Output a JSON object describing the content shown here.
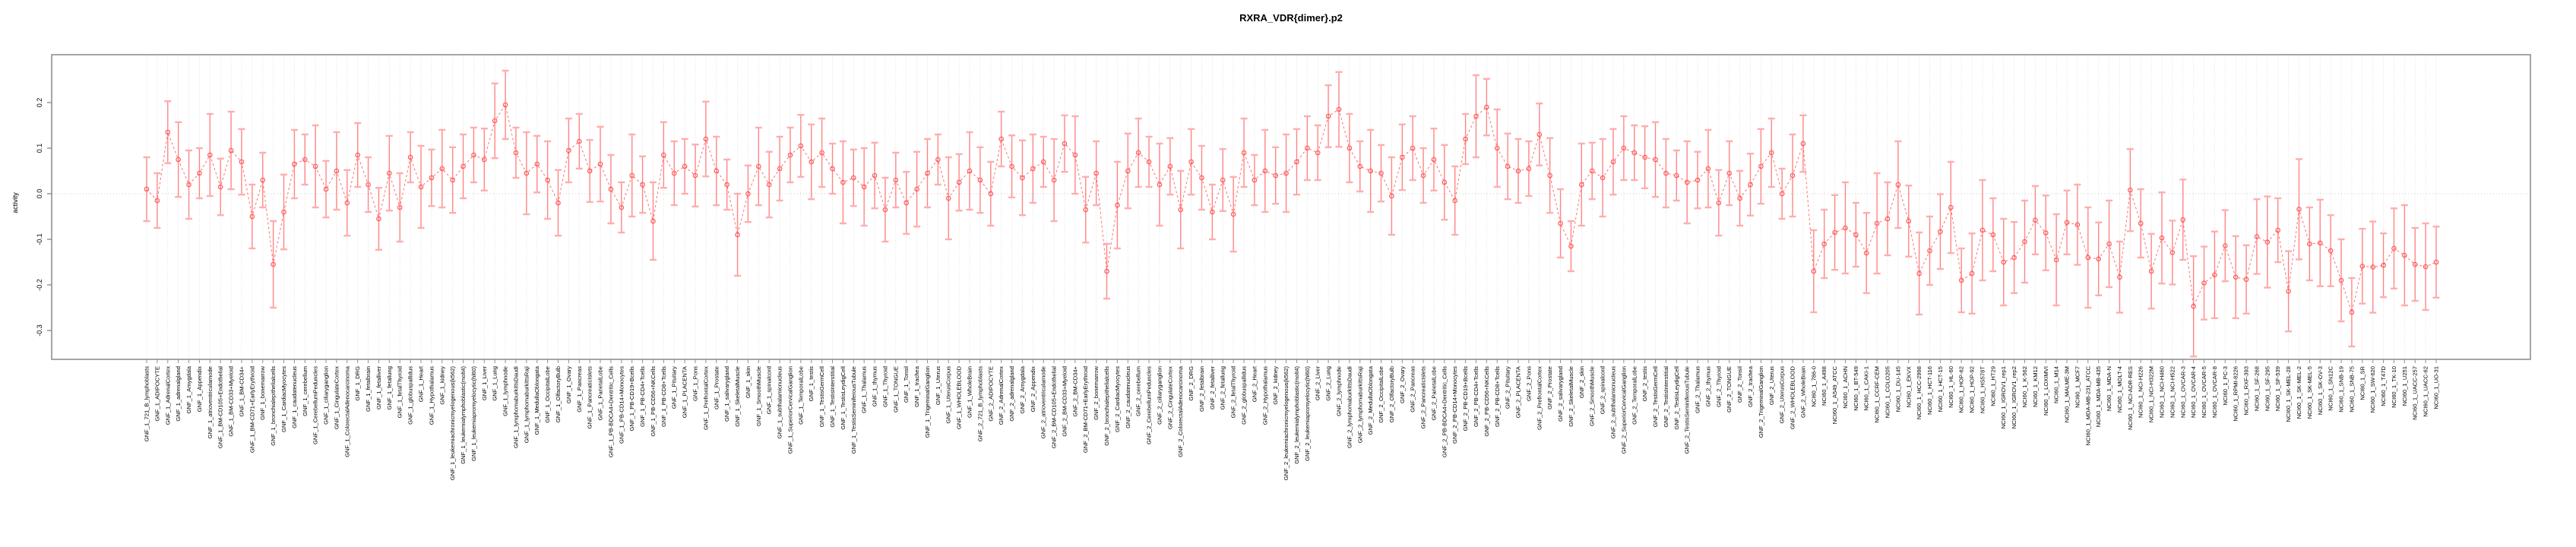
{
  "title": "RXRA_VDR{dimer}.p2",
  "chart_data": {
    "type": "line",
    "title": "RXRA_VDR{dimer}.p2",
    "xlabel": "",
    "ylabel": "activity",
    "ylim": [
      -0.363,
      0.305
    ],
    "yticks": [
      0.2,
      0.1,
      0.0,
      -0.1,
      -0.2,
      -0.3
    ],
    "ytick_labels": [
      "0.2",
      "0.1",
      "0.0",
      "-0.1",
      "-0.2",
      "-0.3"
    ],
    "grid": "dotted vertical line at every category; dotted horizontal line at 0",
    "legend_position": "none",
    "marker": "open circle with capped error bars, dashed red connecting line",
    "colors": {
      "bar": "#ff8585",
      "cap": "#ffadad",
      "line": "#ff7070",
      "point": "#ff5a5a",
      "box": "#8f8f8f",
      "gridline": "#dcdcdc",
      "zero_line": "#cccccc",
      "text": "#000000"
    },
    "sections": [
      {
        "name": "GNF_1",
        "count": 79
      },
      {
        "name": "GNF_2",
        "count": 79
      },
      {
        "name": "NCI60_1",
        "count": 60
      }
    ],
    "categories": [
      "GNF_1_721_B_lymphoblasts",
      "GNF_1_ADIPOCYTE",
      "GNF_1_AdrenalCortex",
      "GNF_1_adrenalgland",
      "GNF_1_Amygdala",
      "GNF_1_Appendix",
      "GNF_1_atrioventricularnode",
      "GNF_1_BM-CD105+Endothelial",
      "GNF_1_BM-CD33+Myeloid",
      "GNF_1_BM-CD34+",
      "GNF_1_BM-CD71+EarlyErythroid",
      "GNF_1_bonemarrow",
      "GNF_1_bronchialepithelialcells",
      "GNF_1_CardiacMyocytes",
      "GNF_1_caudatenucleus",
      "GNF_1_cerebellum",
      "GNF_1_CerebellumPeduncles",
      "GNF_1_ciliaryganglion",
      "GNF_1_CingulateCortex",
      "GNF_1_ColorectalAdenocarcinoma",
      "GNF_1_DRG",
      "GNF_1_fetalbrain",
      "GNF_1_fetalliver",
      "GNF_1_fetallung",
      "GNF_1_fetalThyroid",
      "GNF_1_globuspallidus",
      "GNF_1_Heart",
      "GNF_1_Hypothalamus",
      "GNF_1_kidney",
      "GNF_1_leukemiachronicmyelogenous(k562)",
      "GNF_1_leukemialymphoblastic(molt4)",
      "GNF_1_leukemiapromyelocytic(hl60)",
      "GNF_1_Liver",
      "GNF_1_Lung",
      "GNF_1_lymphnode",
      "GNF_1_lymphomaburkittsDaudi",
      "GNF_1_lymphomaburkittsRaji",
      "GNF_1_MedullaOblongata",
      "GNF_1_OccipitalLobe",
      "GNF_1_OlfactoryBulb",
      "GNF_1_Ovary",
      "GNF_1_Pancreas",
      "GNF_1_PancreaticIslets",
      "GNF_1_ParietalLobe",
      "GNF_1_PB-BDCA4+Dentritic_Cells",
      "GNF_1_PB-CD14+Monocytes",
      "GNF_1_PB-CD19+Bcells",
      "GNF_1_PB-CD4+Tcells",
      "GNF_1_PB-CD56+NKCells",
      "GNF_1_PB-CD8+Tcells",
      "GNF_1_Pituitary",
      "GNF_1_PLACENTA",
      "GNF_1_Pons",
      "GNF_1_PrefrontalCortex",
      "GNF_1_Prostate",
      "GNF_1_salivarygland",
      "GNF_1_SkeletalMuscle",
      "GNF_1_skin",
      "GNF_1_SmoothMuscle",
      "GNF_1_spinalcord",
      "GNF_1_subthalamicnucleus",
      "GNF_1_SuperiorCervicalGanglion",
      "GNF_1_TemporalLobe",
      "GNF_1_testis",
      "GNF_1_TestisGermCell",
      "GNF_1_TestisInterstitial",
      "GNF_1_TestisLeydigCell",
      "GNF_1_TestisSeminiferousTubule",
      "GNF_1_Thalamus",
      "GNF_1_thymus",
      "GNF_1_Thyroid",
      "GNF_1_TONGUE",
      "GNF_1_Tonsil",
      "GNF_1_trachea",
      "GNF_1_TrigeminalGanglion",
      "GNF_1_Uterus",
      "GNF_1_UterusCorpus",
      "GNF_1_WHOLEBLOOD",
      "GNF_1_WholeBrain",
      "GNF_2_721_B_lymphoblasts",
      "GNF_2_ADIPOCYTE",
      "GNF_2_AdrenalCortex",
      "GNF_2_adrenalgland",
      "GNF_2_Amygdala",
      "GNF_2_Appendix",
      "GNF_2_atrioventricularnode",
      "GNF_2_BM-CD105+Endothelial",
      "GNF_2_BM-CD33+Myeloid",
      "GNF_2_BM-CD34+",
      "GNF_2_BM-CD71+EarlyErythroid",
      "GNF_2_bonemarrow",
      "GNF_2_bronchialepithelialcells",
      "GNF_2_CardiacMyocytes",
      "GNF_2_caudatenucleus",
      "GNF_2_cerebellum",
      "GNF_2_CerebellumPeduncles",
      "GNF_2_ciliaryganglion",
      "GNF_2_CingulateCortex",
      "GNF_2_ColorectalAdenocarcinoma",
      "GNF_2_DRG",
      "GNF_2_fetalbrain",
      "GNF_2_fetalliver",
      "GNF_2_fetallung",
      "GNF_2_fetalThyroid",
      "GNF_2_globuspallidus",
      "GNF_2_Heart",
      "GNF_2_Hypothalamus",
      "GNF_2_kidney",
      "GNF_2_leukemiachronicmyelogenous(k562)",
      "GNF_2_leukemialymphoblastic(molt4)",
      "GNF_2_leukemiapromyelocytic(hl60)",
      "GNF_2_Liver",
      "GNF_2_Lung",
      "GNF_2_lymphnode",
      "GNF_2_lymphomaburkittsDaudi",
      "GNF_2_lymphomaburkittsRaji",
      "GNF_2_MedullaOblongata",
      "GNF_2_OccipitalLobe",
      "GNF_2_OlfactoryBulb",
      "GNF_2_Ovary",
      "GNF_2_Pancreas",
      "GNF_2_PancreaticIslets",
      "GNF_2_ParietalLobe",
      "GNF_2_PB-BDCA4+Dentritic_Cells",
      "GNF_2_PB-CD14+Monocytes",
      "GNF_2_PB-CD19+Bcells",
      "GNF_2_PB-CD4+Tcells",
      "GNF_2_PB-CD56+NKCells",
      "GNF_2_PB-CD8+Tcells",
      "GNF_2_Pituitary",
      "GNF_2_PLACENTA",
      "GNF_2_Pons",
      "GNF_2_PrefrontalCortex",
      "GNF_2_Prostate",
      "GNF_2_salivarygland",
      "GNF_2_SkeletalMuscle",
      "GNF_2_skin",
      "GNF_2_SmoothMuscle",
      "GNF_2_spinalcord",
      "GNF_2_subthalamicnucleus",
      "GNF_2_SuperiorCervicalGanglion",
      "GNF_2_TemporalLobe",
      "GNF_2_testis",
      "GNF_2_TestisGermCell",
      "GNF_2_TestisInterstitial",
      "GNF_2_TestisLeydigCell",
      "GNF_2_TestisSeminiferousTubule",
      "GNF_2_Thalamus",
      "GNF_2_thymus",
      "GNF_2_Thyroid",
      "GNF_2_TONGUE",
      "GNF_2_Tonsil",
      "GNF_2_trachea",
      "GNF_2_TrigeminalGanglion",
      "GNF_2_Uterus",
      "GNF_2_UterusCorpus",
      "GNF_2_WHOLEBLOOD",
      "GNF_2_WholeBrain",
      "NCI60_1_786-0",
      "NCI60_1_A498",
      "NCI60_1_A549_ATCC",
      "NCI60_1_ACHN",
      "NCI60_1_BT-549",
      "NCI60_1_CAKI-1",
      "NCI60_1_CCRF-CEM",
      "NCI60_1_COLO205",
      "NCI60_1_DU-145",
      "NCI60_1_EKVX",
      "NCI60_1_HCC-2998",
      "NCI60_1_HCT-116",
      "NCI60_1_HCT-15",
      "NCI60_1_HL-60",
      "NCI60_1_HOP-62",
      "NCI60_1_HOP-92",
      "NCI60_1_HS578T",
      "NCI60_1_HT29",
      "NCI60_1_IGROV1_rep1",
      "NCI60_1_IGROV1_rep2",
      "NCI60_1_K-562",
      "NCI60_1_KM12",
      "NCI60_1_LOXIMVI",
      "NCI60_1_M14",
      "NCI60_1_MALME-3M",
      "NCI60_1_MCF7",
      "NCI60_1_MDA-MB-231_ATCC",
      "NCI60_1_MDA-MB-435",
      "NCI60_1_MDA-N",
      "NCI60_1_MOLT-4",
      "NCI60_1_NCI-ADR-RES",
      "NCI60_1_NCI-H226",
      "NCI60_1_NCI-H322M",
      "NCI60_1_NCI-H460",
      "NCI60_1_NCI-H522",
      "NCI60_1_OVCAR-3",
      "NCI60_1_OVCAR-4",
      "NCI60_1_OVCAR-5",
      "NCI60_1_OVCAR-8",
      "NCI60_1_PC-3",
      "NCI60_1_RPMI-8226",
      "NCI60_1_RXF-393",
      "NCI60_1_SF-268",
      "NCI60_1_SF-295",
      "NCI60_1_SF-539",
      "NCI60_1_SK-MEL-28",
      "NCI60_1_SK-MEL-2",
      "NCI60_1_SK-MEL-5",
      "NCI60_1_SK-OV-3",
      "NCI60_1_SN12C",
      "NCI60_1_SNB-19",
      "NCI60_1_SNB-75",
      "NCI60_1_SR",
      "NCI60_1_SW-620",
      "NCI60_1_T47D",
      "NCI60_1_TK-10",
      "NCI60_1_U251",
      "NCI60_1_UACC-257",
      "NCI60_1_UACC-62",
      "NCI60_1_UO-31"
    ],
    "values": [
      0.01,
      -0.015,
      0.135,
      0.075,
      0.02,
      0.045,
      0.085,
      0.015,
      0.095,
      0.07,
      -0.05,
      0.03,
      -0.155,
      -0.04,
      0.065,
      0.075,
      0.06,
      0.01,
      0.05,
      -0.02,
      0.085,
      0.02,
      -0.055,
      0.045,
      -0.03,
      0.08,
      0.015,
      0.035,
      0.055,
      0.03,
      0.06,
      0.085,
      0.075,
      0.16,
      0.195,
      0.09,
      0.045,
      0.065,
      0.03,
      -0.02,
      0.095,
      0.115,
      0.05,
      0.065,
      0.01,
      -0.03,
      0.04,
      0.02,
      -0.06,
      0.085,
      0.045,
      0.06,
      0.04,
      0.12,
      0.05,
      0.02,
      -0.09,
      0.0,
      0.06,
      0.02,
      0.055,
      0.085,
      0.105,
      0.07,
      0.09,
      0.055,
      0.025,
      0.035,
      0.015,
      0.04,
      -0.035,
      0.03,
      -0.02,
      0.01,
      0.045,
      0.075,
      -0.01,
      0.025,
      0.05,
      0.03,
      0.0,
      0.12,
      0.06,
      0.035,
      0.055,
      0.07,
      0.03,
      0.11,
      0.085,
      -0.035,
      0.045,
      -0.17,
      -0.025,
      0.05,
      0.09,
      0.07,
      0.02,
      0.06,
      -0.035,
      0.07,
      0.035,
      -0.04,
      0.03,
      -0.045,
      0.09,
      0.03,
      0.05,
      0.04,
      0.045,
      0.07,
      0.1,
      0.09,
      0.17,
      0.185,
      0.1,
      0.06,
      0.05,
      0.045,
      -0.005,
      0.08,
      0.1,
      0.04,
      0.075,
      0.025,
      -0.015,
      0.12,
      0.17,
      0.19,
      0.1,
      0.06,
      0.05,
      0.055,
      0.13,
      0.04,
      -0.065,
      -0.115,
      0.02,
      0.05,
      0.035,
      0.07,
      0.1,
      0.09,
      0.08,
      0.075,
      0.045,
      0.04,
      0.025,
      0.03,
      0.055,
      -0.02,
      0.045,
      -0.01,
      0.02,
      0.06,
      0.09,
      0.0,
      0.04,
      0.11,
      -0.17,
      -0.11,
      -0.085,
      -0.075,
      -0.09,
      -0.13,
      -0.065,
      -0.055,
      0.02,
      -0.06,
      -0.175,
      -0.125,
      -0.083,
      -0.03,
      -0.19,
      -0.175,
      -0.08,
      -0.09,
      -0.15,
      -0.14,
      -0.105,
      -0.058,
      -0.086,
      -0.145,
      -0.063,
      -0.068,
      -0.14,
      -0.143,
      -0.11,
      -0.183,
      0.008,
      -0.065,
      -0.17,
      -0.097,
      -0.129,
      -0.057,
      -0.247,
      -0.196,
      -0.178,
      -0.114,
      -0.183,
      -0.188,
      -0.094,
      -0.106,
      -0.08,
      -0.214,
      -0.034,
      -0.11,
      -0.108,
      -0.125,
      -0.19,
      -0.26,
      -0.159,
      -0.161,
      -0.157,
      -0.12,
      -0.135,
      -0.155,
      -0.16,
      -0.15
    ],
    "errors": [
      0.07,
      0.06,
      0.068,
      0.082,
      0.075,
      0.055,
      0.09,
      0.062,
      0.085,
      0.072,
      0.07,
      0.06,
      0.095,
      0.082,
      0.075,
      0.055,
      0.09,
      0.062,
      0.085,
      0.072,
      0.07,
      0.06,
      0.068,
      0.082,
      0.075,
      0.055,
      0.09,
      0.062,
      0.085,
      0.072,
      0.07,
      0.06,
      0.068,
      0.082,
      0.075,
      0.055,
      0.09,
      0.062,
      0.085,
      0.072,
      0.07,
      0.06,
      0.068,
      0.082,
      0.075,
      0.055,
      0.09,
      0.062,
      0.085,
      0.072,
      0.07,
      0.06,
      0.068,
      0.082,
      0.075,
      0.055,
      0.09,
      0.062,
      0.085,
      0.072,
      0.07,
      0.06,
      0.068,
      0.082,
      0.075,
      0.055,
      0.09,
      0.062,
      0.085,
      0.072,
      0.07,
      0.06,
      0.068,
      0.082,
      0.075,
      0.055,
      0.09,
      0.062,
      0.085,
      0.072,
      0.07,
      0.06,
      0.068,
      0.082,
      0.075,
      0.055,
      0.09,
      0.062,
      0.085,
      0.072,
      0.07,
      0.06,
      0.095,
      0.082,
      0.075,
      0.055,
      0.09,
      0.062,
      0.085,
      0.072,
      0.07,
      0.06,
      0.068,
      0.082,
      0.075,
      0.055,
      0.09,
      0.062,
      0.085,
      0.072,
      0.07,
      0.06,
      0.068,
      0.082,
      0.075,
      0.055,
      0.09,
      0.062,
      0.085,
      0.072,
      0.07,
      0.06,
      0.068,
      0.082,
      0.075,
      0.055,
      0.09,
      0.062,
      0.085,
      0.072,
      0.07,
      0.06,
      0.068,
      0.082,
      0.075,
      0.055,
      0.09,
      0.062,
      0.085,
      0.072,
      0.07,
      0.06,
      0.068,
      0.082,
      0.075,
      0.055,
      0.09,
      0.062,
      0.085,
      0.072,
      0.07,
      0.06,
      0.068,
      0.082,
      0.075,
      0.055,
      0.09,
      0.062,
      0.09,
      0.075,
      0.082,
      0.1,
      0.07,
      0.088,
      0.11,
      0.08,
      0.095,
      0.078,
      0.09,
      0.075,
      0.082,
      0.1,
      0.07,
      0.088,
      0.11,
      0.08,
      0.095,
      0.078,
      0.09,
      0.075,
      0.082,
      0.1,
      0.07,
      0.088,
      0.11,
      0.08,
      0.095,
      0.078,
      0.09,
      0.075,
      0.082,
      0.1,
      0.07,
      0.088,
      0.11,
      0.08,
      0.095,
      0.078,
      0.09,
      0.075,
      0.082,
      0.1,
      0.07,
      0.088,
      0.11,
      0.08,
      0.095,
      0.078,
      0.09,
      0.075,
      0.082,
      0.1,
      0.07,
      0.088,
      0.11,
      0.08,
      0.095,
      0.078
    ]
  }
}
